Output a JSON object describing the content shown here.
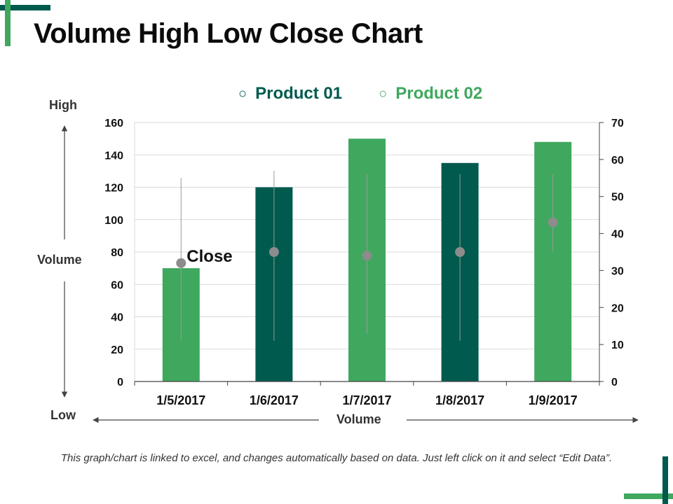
{
  "title": "Volume High Low Close Chart",
  "colors": {
    "accent": "#005a4e",
    "accent2": "#3fa85e",
    "marker": "#8c8c8c",
    "grid": "#d9d9d9"
  },
  "legend": [
    {
      "label": "Product 01",
      "color": "#005a4e"
    },
    {
      "label": "Product 02",
      "color": "#3fa85e"
    }
  ],
  "axis_labels": {
    "high": "High",
    "volume_left": "Volume",
    "low": "Low",
    "volume_bottom": "Volume"
  },
  "footnote": "This graph/chart is linked to excel, and changes automatically based on data. Just left click on it and select “Edit Data”.",
  "chart_data": {
    "type": "bar",
    "title": "Volume High Low Close Chart",
    "categories": [
      "1/5/2017",
      "1/6/2017",
      "1/7/2017",
      "1/8/2017",
      "1/9/2017"
    ],
    "volume": [
      70,
      120,
      150,
      135,
      148
    ],
    "volume_series": [
      "Product 02",
      "Product 01",
      "Product 02",
      "Product 01",
      "Product 02"
    ],
    "high": [
      55,
      57,
      56,
      56,
      56
    ],
    "low": [
      11,
      11,
      13,
      11,
      35
    ],
    "close": [
      32,
      35,
      34,
      35,
      43
    ],
    "ylim_left": [
      0,
      160
    ],
    "yticks_left": [
      0,
      20,
      40,
      60,
      80,
      100,
      120,
      140,
      160
    ],
    "ylim_right": [
      0,
      70
    ],
    "yticks_right": [
      0,
      10,
      20,
      30,
      40,
      50,
      60,
      70
    ],
    "annotation": "Close",
    "grid": true
  }
}
